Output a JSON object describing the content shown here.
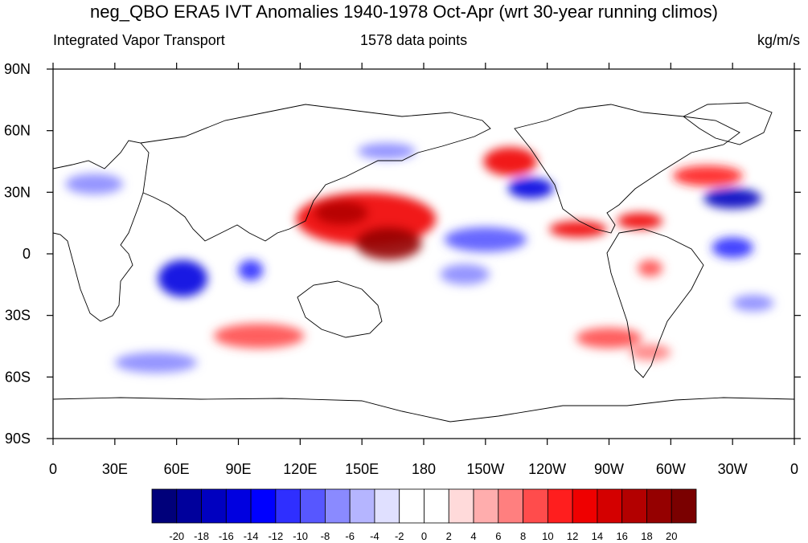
{
  "title": "neg_QBO ERA5 IVT Anomalies 1940-1978 Oct-Apr (wrt 30-year running climos)",
  "subtitle_left": "Integrated Vapor Transport",
  "subtitle_center": "1578 data points",
  "subtitle_right": "kg/m/s",
  "lat_ticks": [
    "90N",
    "60N",
    "30N",
    "0",
    "30S",
    "60S",
    "90S"
  ],
  "lon_ticks": [
    "0",
    "30E",
    "60E",
    "90E",
    "120E",
    "150E",
    "180",
    "150W",
    "120W",
    "90W",
    "60W",
    "30W",
    "0"
  ],
  "colorbar": {
    "labels": [
      "-20",
      "-18",
      "-16",
      "-14",
      "-12",
      "-10",
      "-8",
      "-6",
      "-4",
      "-2",
      "0",
      "2",
      "4",
      "6",
      "8",
      "10",
      "12",
      "14",
      "16",
      "18",
      "20"
    ],
    "colors": [
      "#00007a",
      "#00009c",
      "#0000c0",
      "#0000e0",
      "#0000ff",
      "#2f2fff",
      "#5757ff",
      "#8a8aff",
      "#b5b5ff",
      "#e0e0ff",
      "#ffffff",
      "#ffffff",
      "#ffdada",
      "#ffadad",
      "#ff7f7f",
      "#ff4c4c",
      "#ff1e1e",
      "#ef0000",
      "#d40000",
      "#b30000",
      "#950000",
      "#7a0000"
    ]
  },
  "anomaly_blobs": [
    {
      "lon": 152,
      "lat": 17,
      "rx": 34,
      "ry": 13,
      "color": "#ef0000"
    },
    {
      "lon": 163,
      "lat": 5,
      "rx": 16,
      "ry": 8,
      "color": "#950000"
    },
    {
      "lon": 140,
      "lat": 20,
      "rx": 13,
      "ry": 6,
      "color": "#b30000"
    },
    {
      "lon": 222,
      "lat": 45,
      "rx": 13,
      "ry": 7,
      "color": "#ef0000"
    },
    {
      "lon": 232,
      "lat": 32,
      "rx": 11,
      "ry": 5,
      "color": "#0000e0"
    },
    {
      "lon": 318,
      "lat": 38,
      "rx": 17,
      "ry": 5,
      "color": "#ff1e1e"
    },
    {
      "lon": 330,
      "lat": 27,
      "rx": 14,
      "ry": 5,
      "color": "#0000c0"
    },
    {
      "lon": 255,
      "lat": 12,
      "rx": 14,
      "ry": 4,
      "color": "#ef0000"
    },
    {
      "lon": 285,
      "lat": 16,
      "rx": 11,
      "ry": 4,
      "color": "#ef0000"
    },
    {
      "lon": 330,
      "lat": 3,
      "rx": 10,
      "ry": 5,
      "color": "#2f2fff"
    },
    {
      "lon": 63,
      "lat": -12,
      "rx": 12,
      "ry": 9,
      "color": "#0000e0"
    },
    {
      "lon": 96,
      "lat": -8,
      "rx": 6,
      "ry": 5,
      "color": "#2f2fff"
    },
    {
      "lon": 210,
      "lat": 7,
      "rx": 20,
      "ry": 6,
      "color": "#5757ff"
    },
    {
      "lon": 100,
      "lat": -40,
      "rx": 22,
      "ry": 6,
      "color": "#ff4c4c"
    },
    {
      "lon": 270,
      "lat": -41,
      "rx": 16,
      "ry": 5,
      "color": "#ff4c4c"
    },
    {
      "lon": 200,
      "lat": -10,
      "rx": 12,
      "ry": 5,
      "color": "#8a8aff"
    },
    {
      "lon": 50,
      "lat": -53,
      "rx": 20,
      "ry": 5,
      "color": "#8a8aff"
    },
    {
      "lon": 20,
      "lat": 34,
      "rx": 14,
      "ry": 5,
      "color": "#8a8aff"
    },
    {
      "lon": 162,
      "lat": 50,
      "rx": 14,
      "ry": 4,
      "color": "#8a8aff"
    },
    {
      "lon": 290,
      "lat": -7,
      "rx": 6,
      "ry": 4,
      "color": "#ff4c4c"
    },
    {
      "lon": 340,
      "lat": -24,
      "rx": 10,
      "ry": 4,
      "color": "#8a8aff"
    },
    {
      "lon": 290,
      "lat": -48,
      "rx": 10,
      "ry": 4,
      "color": "#ff7f7f"
    }
  ]
}
